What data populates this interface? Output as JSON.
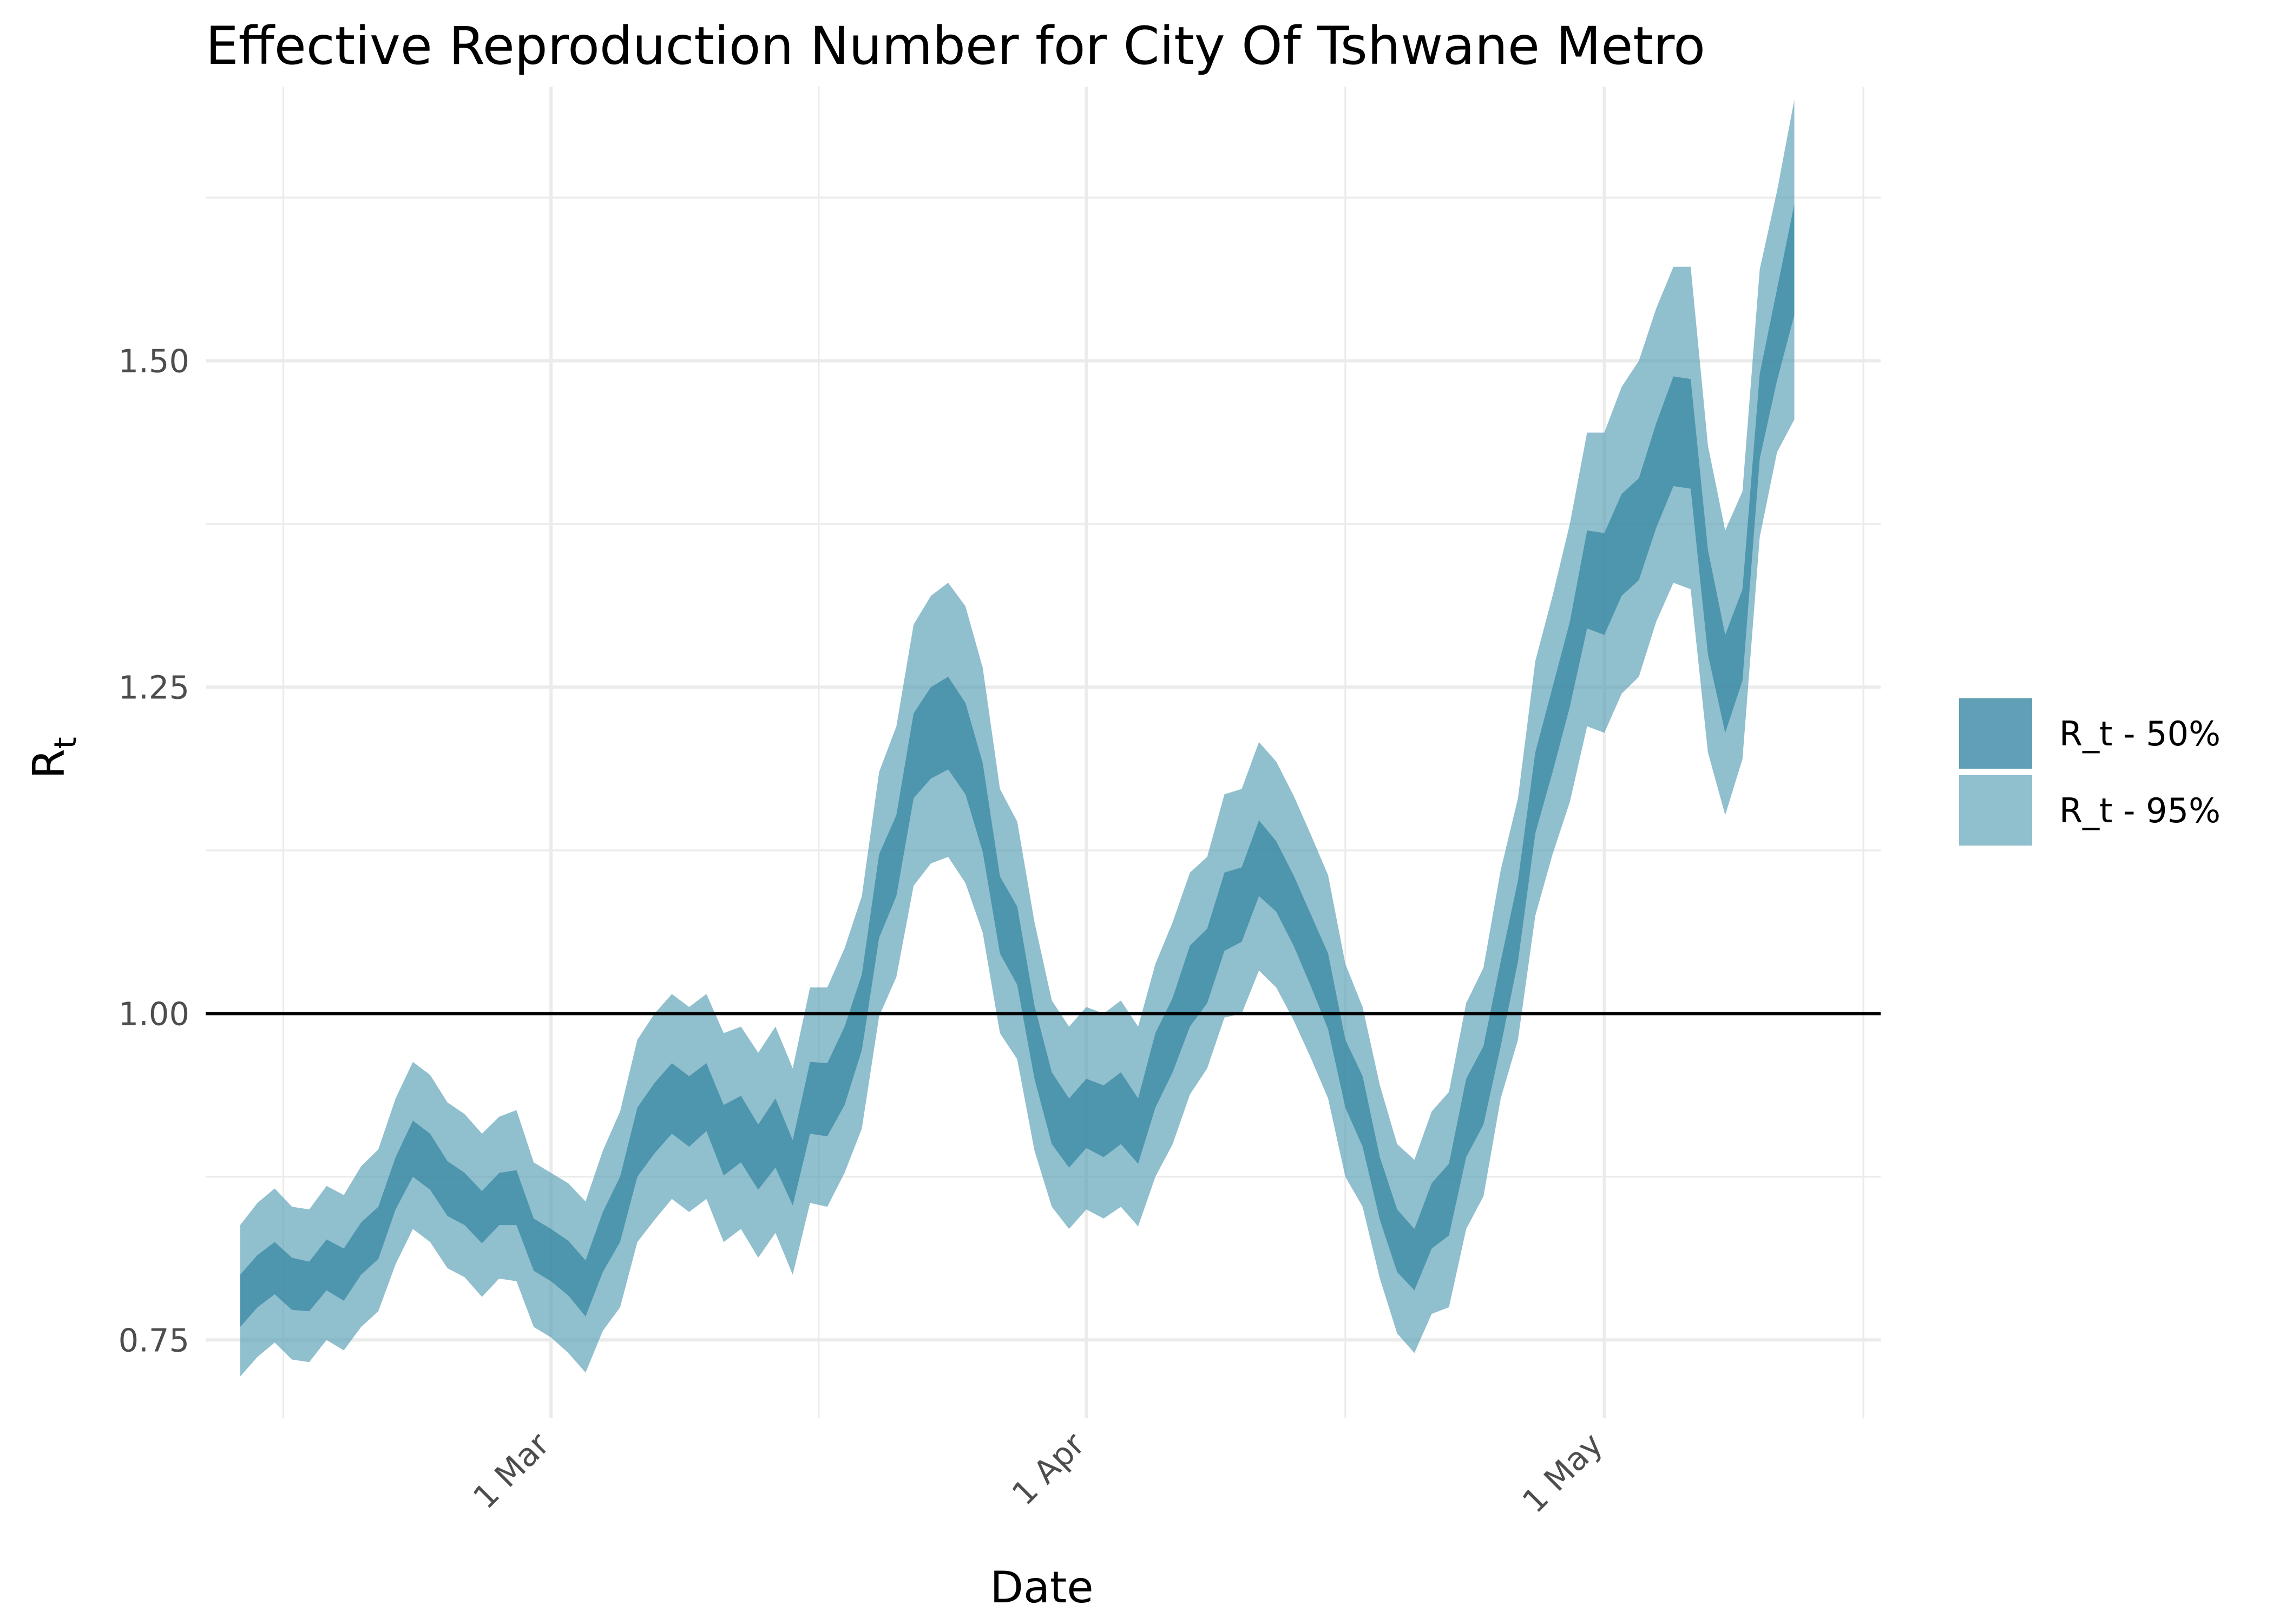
{
  "chart_data": {
    "type": "area",
    "title": "Effective Reproduction Number for City Of Tshwane Metro",
    "xlabel": "Date",
    "ylabel": "R",
    "ylabel_subscript": "t",
    "x_start": "2020-02-12",
    "x_end": "2020-05-11",
    "xlim": [
      "2020-02-10",
      "2020-05-17"
    ],
    "ylim": [
      0.69,
      1.71
    ],
    "x_ticks": [
      {
        "date": "2020-03-01",
        "label": "1 Mar"
      },
      {
        "date": "2020-04-01",
        "label": "1 Apr"
      },
      {
        "date": "2020-05-01",
        "label": "1 May"
      }
    ],
    "y_ticks": [
      0.75,
      1.0,
      1.25,
      1.5
    ],
    "y_tick_labels": [
      "0.75",
      "1.00",
      "1.25",
      "1.50"
    ],
    "reference_line": 1.0,
    "grid": true,
    "legend_position": "right",
    "series": [
      {
        "name": "R_t - 50%",
        "color": "#2b7f9c",
        "opacity": 0.65,
        "upper": [
          0.8,
          0.815,
          0.825,
          0.813,
          0.81,
          0.827,
          0.82,
          0.84,
          0.852,
          0.89,
          0.918,
          0.908,
          0.887,
          0.878,
          0.864,
          0.878,
          0.88,
          0.843,
          0.835,
          0.826,
          0.811,
          0.848,
          0.875,
          0.928,
          0.947,
          0.962,
          0.952,
          0.962,
          0.93,
          0.937,
          0.915,
          0.935,
          0.903,
          0.963,
          0.962,
          0.99,
          1.03,
          1.122,
          1.152,
          1.23,
          1.25,
          1.258,
          1.238,
          1.192,
          1.105,
          1.082,
          1.006,
          0.955,
          0.935,
          0.95,
          0.945,
          0.955,
          0.935,
          0.985,
          1.012,
          1.052,
          1.065,
          1.108,
          1.112,
          1.148,
          1.132,
          1.106,
          1.076,
          1.046,
          0.98,
          0.952,
          0.89,
          0.85,
          0.835,
          0.87,
          0.885,
          0.95,
          0.975,
          1.04,
          1.102,
          1.2,
          1.25,
          1.3,
          1.37,
          1.368,
          1.398,
          1.41,
          1.452,
          1.488,
          1.486,
          1.355,
          1.29,
          1.325,
          1.49,
          1.555,
          1.62
        ],
        "lower": [
          0.76,
          0.775,
          0.785,
          0.773,
          0.772,
          0.788,
          0.78,
          0.8,
          0.812,
          0.85,
          0.875,
          0.865,
          0.845,
          0.838,
          0.824,
          0.838,
          0.838,
          0.803,
          0.795,
          0.784,
          0.768,
          0.802,
          0.825,
          0.875,
          0.893,
          0.908,
          0.898,
          0.91,
          0.876,
          0.886,
          0.865,
          0.882,
          0.853,
          0.908,
          0.906,
          0.93,
          0.972,
          1.058,
          1.09,
          1.165,
          1.18,
          1.187,
          1.168,
          1.124,
          1.046,
          1.022,
          0.95,
          0.9,
          0.882,
          0.897,
          0.89,
          0.9,
          0.885,
          0.928,
          0.955,
          0.99,
          1.008,
          1.048,
          1.055,
          1.09,
          1.078,
          1.052,
          1.021,
          0.988,
          0.928,
          0.898,
          0.842,
          0.802,
          0.788,
          0.82,
          0.83,
          0.89,
          0.915,
          0.975,
          1.04,
          1.138,
          1.185,
          1.235,
          1.295,
          1.29,
          1.32,
          1.332,
          1.372,
          1.404,
          1.402,
          1.275,
          1.215,
          1.255,
          1.425,
          1.485,
          1.535
        ]
      },
      {
        "name": "R_t - 95%",
        "color": "#4f99b1",
        "opacity": 0.63,
        "upper": [
          0.838,
          0.855,
          0.866,
          0.852,
          0.85,
          0.868,
          0.861,
          0.883,
          0.896,
          0.935,
          0.963,
          0.953,
          0.932,
          0.923,
          0.908,
          0.921,
          0.926,
          0.886,
          0.878,
          0.87,
          0.856,
          0.895,
          0.925,
          0.98,
          1.0,
          1.015,
          1.005,
          1.015,
          0.985,
          0.99,
          0.97,
          0.99,
          0.958,
          1.02,
          1.02,
          1.05,
          1.09,
          1.185,
          1.22,
          1.298,
          1.32,
          1.33,
          1.312,
          1.265,
          1.172,
          1.147,
          1.07,
          1.01,
          0.99,
          1.005,
          1.0,
          1.01,
          0.99,
          1.038,
          1.07,
          1.108,
          1.12,
          1.168,
          1.172,
          1.208,
          1.193,
          1.167,
          1.137,
          1.106,
          1.038,
          1.005,
          0.945,
          0.9,
          0.888,
          0.925,
          0.94,
          1.008,
          1.035,
          1.11,
          1.165,
          1.27,
          1.32,
          1.375,
          1.445,
          1.445,
          1.48,
          1.5,
          1.54,
          1.572,
          1.572,
          1.435,
          1.37,
          1.4,
          1.57,
          1.63,
          1.7
        ],
        "lower": [
          0.722,
          0.737,
          0.748,
          0.735,
          0.733,
          0.75,
          0.742,
          0.76,
          0.772,
          0.808,
          0.835,
          0.825,
          0.805,
          0.798,
          0.783,
          0.797,
          0.795,
          0.76,
          0.752,
          0.74,
          0.725,
          0.757,
          0.775,
          0.825,
          0.842,
          0.858,
          0.848,
          0.858,
          0.825,
          0.835,
          0.813,
          0.832,
          0.8,
          0.855,
          0.852,
          0.878,
          0.912,
          0.998,
          1.028,
          1.098,
          1.115,
          1.12,
          1.1,
          1.062,
          0.985,
          0.965,
          0.895,
          0.852,
          0.835,
          0.85,
          0.843,
          0.852,
          0.837,
          0.875,
          0.9,
          0.938,
          0.958,
          0.997,
          1.0,
          1.033,
          1.02,
          0.995,
          0.966,
          0.935,
          0.875,
          0.852,
          0.797,
          0.755,
          0.74,
          0.77,
          0.775,
          0.835,
          0.86,
          0.935,
          0.98,
          1.075,
          1.122,
          1.162,
          1.22,
          1.215,
          1.245,
          1.258,
          1.3,
          1.33,
          1.325,
          1.2,
          1.152,
          1.195,
          1.365,
          1.43,
          1.455
        ]
      }
    ]
  }
}
